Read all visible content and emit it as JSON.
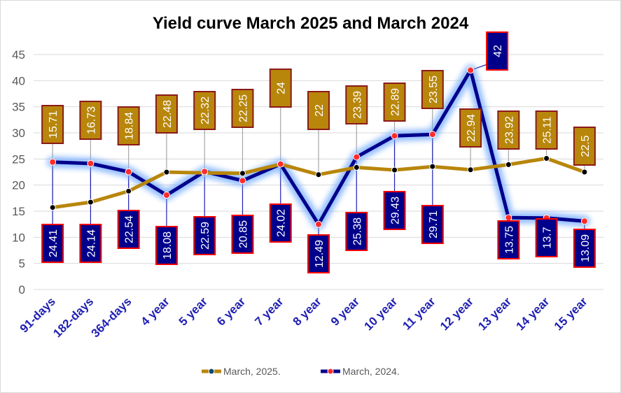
{
  "chart_data": {
    "type": "line",
    "title": "Yield curve March 2025 and March 2024",
    "categories": [
      "91-days",
      "182-days",
      "364-days",
      "4 year",
      "5 year",
      "6 year",
      "7 year",
      "8 year",
      "9 year",
      "10 year",
      "11 year",
      "12 year",
      "13 year",
      "14 year",
      "15 year"
    ],
    "ylim": [
      0,
      45
    ],
    "yticks": [
      0,
      5,
      10,
      15,
      20,
      25,
      30,
      35,
      40,
      45
    ],
    "grid": true,
    "legend_position": "bottom",
    "series": [
      {
        "name": "March, 2025.",
        "color": "#b8860b",
        "values": [
          15.71,
          16.73,
          18.84,
          22.48,
          22.32,
          22.25,
          24,
          22,
          23.39,
          22.89,
          23.55,
          22.94,
          23.92,
          25.11,
          22.5
        ],
        "labels": [
          "15.71",
          "16.73",
          "18.84",
          "22.48",
          "22.32",
          "22.25",
          "24",
          "22",
          "23.39",
          "22.89",
          "23.55",
          "22.94",
          "23.92",
          "25.11",
          "22.5"
        ]
      },
      {
        "name": "March, 2024.",
        "color": "#00008b",
        "values": [
          24.41,
          24.14,
          22.54,
          18.08,
          22.59,
          20.85,
          24.02,
          12.49,
          25.38,
          29.43,
          29.71,
          42,
          13.75,
          13.7,
          13.09
        ],
        "labels": [
          "24.41",
          "24.14",
          "22.54",
          "18.08",
          "22.59",
          "20.85",
          "24.02",
          "12.49",
          "25.38",
          "29.43",
          "29.71",
          "42",
          "13.75",
          "13.7",
          "13.09"
        ]
      }
    ]
  }
}
